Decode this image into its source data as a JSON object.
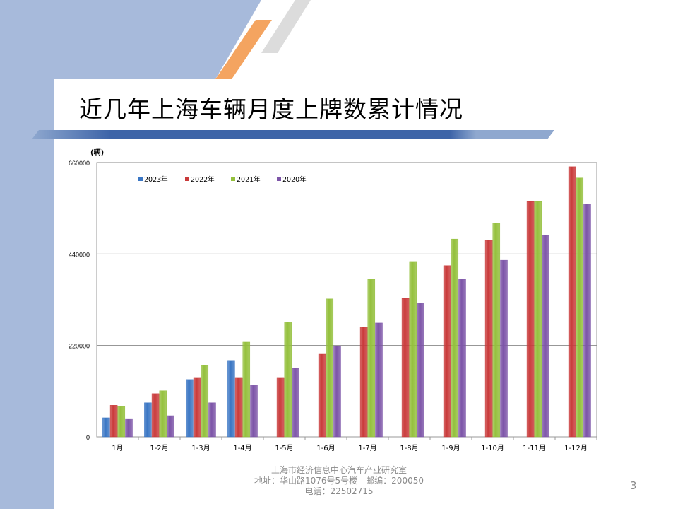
{
  "slide": {
    "title": "近几年上海车辆月度上牌数累计情况",
    "footer": {
      "line1": "上海市经济信息中心汽车产业研究室",
      "line2": "地址：华山路1076号5号楼　邮编：200050",
      "line3": "电话：22502715"
    },
    "page_number": "3"
  },
  "chart_data": {
    "type": "bar",
    "title": "",
    "xlabel": "",
    "ylabel": "(辆)",
    "ylim": [
      0,
      660000
    ],
    "yticks": [
      "0",
      "220000",
      "440000",
      "660000"
    ],
    "grid": true,
    "legend_position": "top-left",
    "categories": [
      "1月",
      "1-2月",
      "1-3月",
      "1-4月",
      "1-5月",
      "1-6月",
      "1-7月",
      "1-8月",
      "1-9月",
      "1-10月",
      "1-11月",
      "1-12月"
    ],
    "series": [
      {
        "name": "2023年",
        "color": "#3a76c4",
        "values": [
          46000,
          82000,
          138000,
          184000,
          null,
          null,
          null,
          null,
          null,
          null,
          null,
          null
        ]
      },
      {
        "name": "2022年",
        "color": "#c93a3a",
        "values": [
          76000,
          104000,
          143000,
          143000,
          143000,
          199000,
          264000,
          333000,
          412000,
          473000,
          566000,
          650000
        ]
      },
      {
        "name": "2021年",
        "color": "#94c03c",
        "values": [
          73000,
          111000,
          172000,
          228000,
          276000,
          332000,
          379000,
          422000,
          476000,
          514000,
          566000,
          623000
        ]
      },
      {
        "name": "2020年",
        "color": "#7d55a8",
        "values": [
          44000,
          51000,
          82000,
          124000,
          165000,
          218000,
          274000,
          322000,
          379000,
          425000,
          485000,
          560000
        ]
      }
    ]
  }
}
